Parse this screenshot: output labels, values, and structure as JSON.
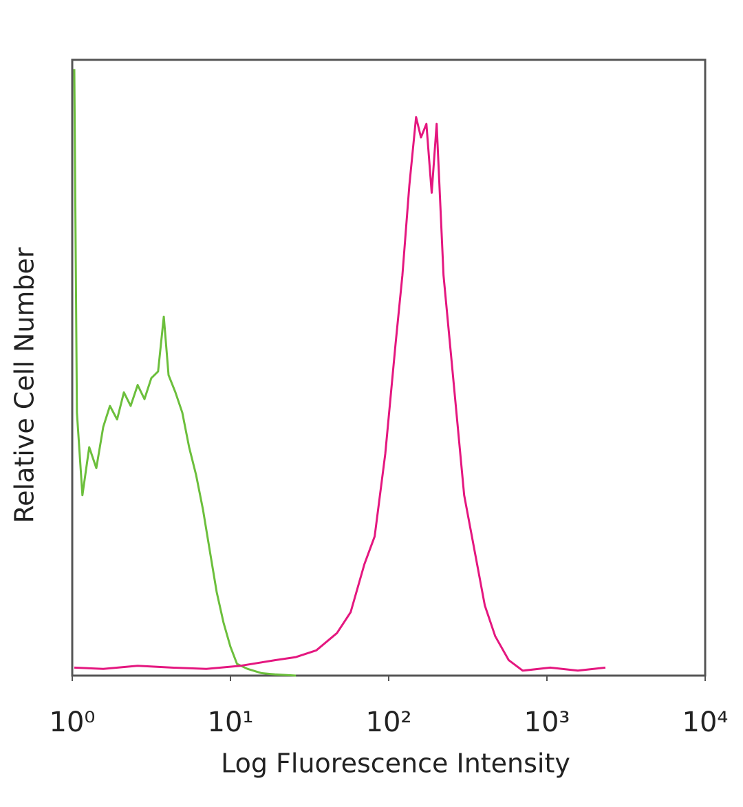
{
  "chart_data": {
    "type": "line",
    "x_label": "Log Fluorescence Intensity",
    "y_label": "Relative Cell Number",
    "x_scale": "log",
    "xlim": [
      1,
      10000
    ],
    "xticks": [
      {
        "value": 1,
        "label": "10⁰"
      },
      {
        "value": 10,
        "label": "10¹"
      },
      {
        "value": 100,
        "label": "10²"
      },
      {
        "value": 1000,
        "label": "10³"
      },
      {
        "value": 10000,
        "label": "10⁴"
      }
    ],
    "ylim": [
      0,
      100
    ],
    "grid": false,
    "series": [
      {
        "color": "#6cbf3c",
        "x": [
          1.03,
          1.07,
          1.16,
          1.28,
          1.42,
          1.57,
          1.73,
          1.92,
          2.12,
          2.34,
          2.59,
          2.86,
          3.16,
          3.49,
          3.79,
          4.06,
          4.49,
          4.96,
          5.48,
          6.06,
          6.7,
          7.4,
          8.18,
          9.04,
          9.99,
          11,
          12.8,
          15.7,
          19.1,
          25.9
        ],
        "values": [
          98.5,
          42.7,
          29.3,
          37.1,
          33.7,
          40.4,
          43.8,
          41.6,
          46,
          43.8,
          47.2,
          44.9,
          48.3,
          49.4,
          58.3,
          48.8,
          46,
          42.7,
          37.1,
          32.6,
          27,
          20.3,
          13.6,
          8.6,
          4.7,
          1.9,
          1.1,
          0.4,
          0.2,
          0
        ]
      },
      {
        "color": "#e4177f",
        "x": [
          1.03,
          1.57,
          2.59,
          4.27,
          7.04,
          11.6,
          19.1,
          25.9,
          34.9,
          47.1,
          57.5,
          70.2,
          81.5,
          95.1,
          110.5,
          122,
          135,
          149,
          160,
          173,
          187,
          201,
          222,
          258,
          300,
          349,
          405,
          471,
          574,
          703,
          1049,
          1567,
          2342
        ],
        "values": [
          1.3,
          1.1,
          1.6,
          1.3,
          1.1,
          1.6,
          2.5,
          3,
          4.1,
          6.9,
          10.3,
          18.1,
          22.6,
          36,
          53.9,
          65,
          79.6,
          90.7,
          87.4,
          89.6,
          78.4,
          89.6,
          65,
          47.2,
          29.3,
          20.3,
          11.4,
          6.4,
          2.5,
          0.8,
          1.3,
          0.8,
          1.3
        ]
      }
    ]
  }
}
